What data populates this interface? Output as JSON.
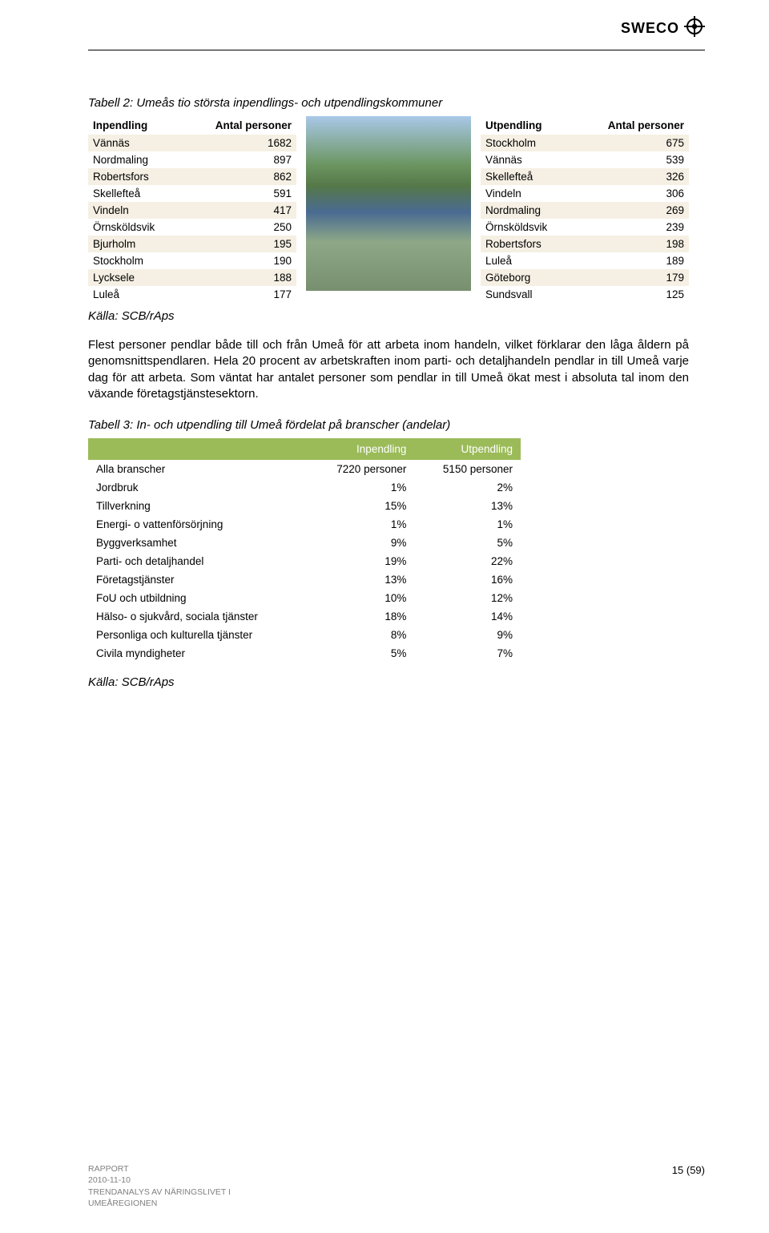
{
  "logo": {
    "text": "SWECO"
  },
  "tables": {
    "caption1": "Tabell 2: Umeås tio största inpendlings- och utpendlingskommuner",
    "left": {
      "headers": [
        "Inpendling",
        "Antal personer"
      ],
      "rows": [
        [
          "Vännäs",
          "1682"
        ],
        [
          "Nordmaling",
          "897"
        ],
        [
          "Robertsfors",
          "862"
        ],
        [
          "Skellefteå",
          "591"
        ],
        [
          "Vindeln",
          "417"
        ],
        [
          "Örnsköldsvik",
          "250"
        ],
        [
          "Bjurholm",
          "195"
        ],
        [
          "Stockholm",
          "190"
        ],
        [
          "Lycksele",
          "188"
        ],
        [
          "Luleå",
          "177"
        ]
      ]
    },
    "right": {
      "headers": [
        "Utpendling",
        "Antal personer"
      ],
      "rows": [
        [
          "Stockholm",
          "675"
        ],
        [
          "Vännäs",
          "539"
        ],
        [
          "Skellefteå",
          "326"
        ],
        [
          "Vindeln",
          "306"
        ],
        [
          "Nordmaling",
          "269"
        ],
        [
          "Örnsköldsvik",
          "239"
        ],
        [
          "Robertsfors",
          "198"
        ],
        [
          "Luleå",
          "189"
        ],
        [
          "Göteborg",
          "179"
        ],
        [
          "Sundsvall",
          "125"
        ]
      ]
    },
    "source1": "Källa: SCB/rAps"
  },
  "paragraph1": "Flest personer pendlar både till och från Umeå för att arbeta inom handeln, vilket förklarar den låga åldern på genomsnittspendlaren. Hela 20 procent av arbetskraften inom parti- och detaljhandeln pendlar in till Umeå varje dag för att arbeta. Som väntat har antalet personer som pendlar in till Umeå ökat mest i absoluta tal inom den växande företagstjänstesektorn.",
  "tables2": {
    "caption2": "Tabell 3: In- och utpendling till Umeå fördelat på branscher (andelar)",
    "headers": [
      "",
      "Inpendling",
      "Utpendling"
    ],
    "rows": [
      [
        "Alla branscher",
        "7220 personer",
        "5150 personer"
      ],
      [
        "Jordbruk",
        "1%",
        "2%"
      ],
      [
        "Tillverkning",
        "15%",
        "13%"
      ],
      [
        "Energi- o vattenförsörjning",
        "1%",
        "1%"
      ],
      [
        "Byggverksamhet",
        "9%",
        "5%"
      ],
      [
        "Parti- och detaljhandel",
        "19%",
        "22%"
      ],
      [
        "Företagstjänster",
        "13%",
        "16%"
      ],
      [
        "FoU och utbildning",
        "10%",
        "12%"
      ],
      [
        "Hälso- o sjukvård, sociala tjänster",
        "18%",
        "14%"
      ],
      [
        "Personliga och kulturella tjänster",
        "8%",
        "9%"
      ],
      [
        "Civila myndigheter",
        "5%",
        "7%"
      ]
    ],
    "source2": "Källa: SCB/rAps"
  },
  "footer": {
    "line1": "RAPPORT",
    "line2": "2010-11-10",
    "line3": "TRENDANALYS AV NÄRINGSLIVET I",
    "line4": "UMEÅREGIONEN",
    "pagenum": "15 (59)"
  },
  "styling": {
    "row_odd_bg": "#f6f0e4",
    "row_even_bg": "#ffffff",
    "branch_header_bg": "#9bbb59",
    "branch_header_fg": "#ffffff"
  }
}
